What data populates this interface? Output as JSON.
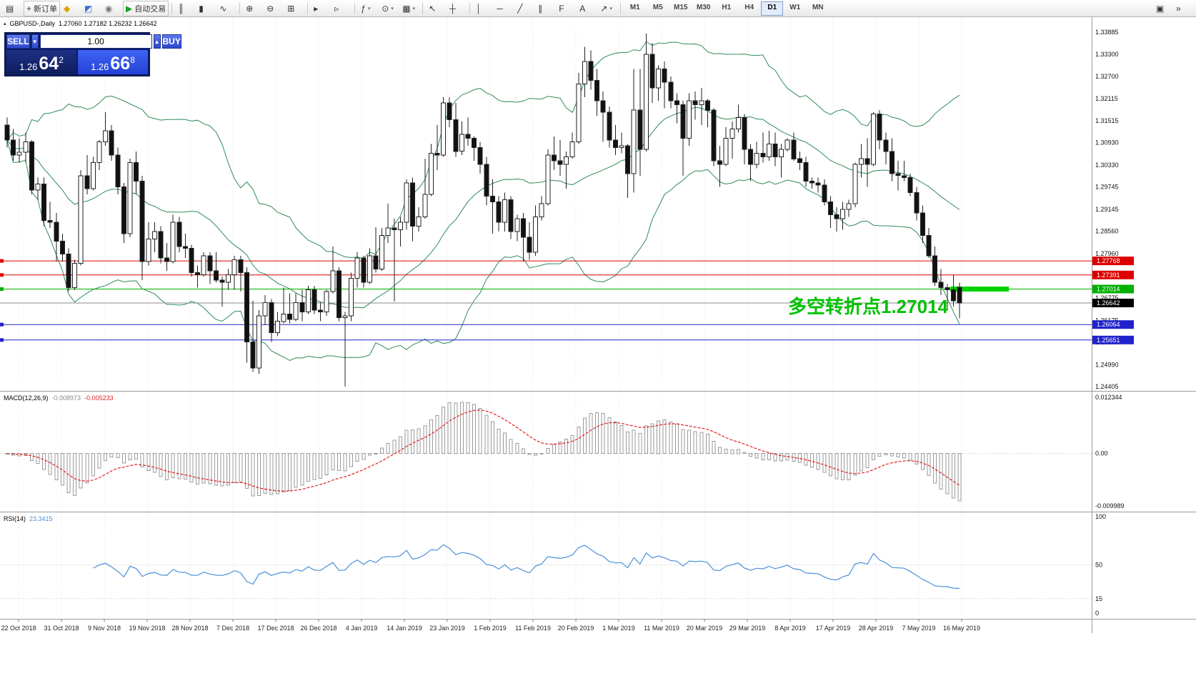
{
  "toolbar": {
    "buttons": [
      {
        "name": "new-chart",
        "glyph": "▤"
      },
      {
        "name": "new-order",
        "glyph": "+",
        "label": "新订单"
      },
      {
        "name": "strategy-tester",
        "glyph": "◆",
        "color": "#d8a400"
      },
      {
        "name": "market-watch",
        "glyph": "◩",
        "color": "#3a6fd8"
      },
      {
        "name": "navigator",
        "glyph": "◉",
        "color": "#777777"
      },
      {
        "name": "autotrading",
        "glyph": "▶",
        "label": "自动交易",
        "color": "#18a018"
      },
      {
        "sep": true
      },
      {
        "name": "chart-bars",
        "glyph": "║"
      },
      {
        "name": "chart-candles",
        "glyph": "▮"
      },
      {
        "name": "chart-line",
        "glyph": "∿"
      },
      {
        "sep": true
      },
      {
        "name": "zoom-in",
        "glyph": "⊕"
      },
      {
        "name": "zoom-out",
        "glyph": "⊖"
      },
      {
        "name": "tile-windows",
        "glyph": "⊞"
      },
      {
        "sep": true
      },
      {
        "name": "auto-scroll",
        "glyph": "▸"
      },
      {
        "name": "chart-shift",
        "glyph": "▹"
      },
      {
        "sep": true
      },
      {
        "name": "indicators",
        "glyph": "ƒ",
        "dropdown": true
      },
      {
        "name": "periods",
        "glyph": "⊙",
        "dropdown": true
      },
      {
        "name": "templates",
        "glyph": "▦",
        "dropdown": true
      },
      {
        "sep": true
      },
      {
        "name": "cursor",
        "glyph": "↖"
      },
      {
        "name": "crosshair",
        "glyph": "┼"
      },
      {
        "sep": true
      },
      {
        "name": "vertical-line",
        "glyph": "│"
      },
      {
        "name": "horizontal-line",
        "glyph": "─"
      },
      {
        "name": "trendline",
        "glyph": "╱"
      },
      {
        "name": "equidistant-channel",
        "glyph": "∥"
      },
      {
        "name": "fibonacci",
        "glyph": "F"
      },
      {
        "name": "text-label",
        "glyph": "A"
      },
      {
        "name": "arrow-tools",
        "glyph": "↗",
        "dropdown": true
      },
      {
        "sep": true
      }
    ],
    "timeframes": [
      {
        "label": "M1"
      },
      {
        "label": "M5"
      },
      {
        "label": "M15"
      },
      {
        "label": "M30"
      },
      {
        "label": "H1"
      },
      {
        "label": "H4"
      },
      {
        "label": "D1",
        "active": true
      },
      {
        "label": "W1"
      },
      {
        "label": "MN"
      }
    ],
    "right_buttons": [
      {
        "name": "chart-window",
        "glyph": "▣"
      },
      {
        "name": "toolbar-options",
        "glyph": "»"
      }
    ]
  },
  "header": {
    "collapse_icon": "▴",
    "symbol_period": "GBPUSD-,Daily",
    "ohlc_text": "1.27060 1.27182 1.26232 1.26642"
  },
  "one_click": {
    "sell_label": "SELL",
    "buy_label": "BUY",
    "volume": "1.00",
    "volume_down": "▼",
    "volume_up": "▲",
    "bid_prefix": "1.26",
    "bid_main": "64",
    "bid_sup": "2",
    "ask_prefix": "1.26",
    "ask_main": "66",
    "ask_sup": "8"
  },
  "chart_data": {
    "type": "candlestick",
    "symbol": "GBPUSD-",
    "timeframe": "Daily",
    "ohlc_current": {
      "open": "1.27060",
      "high": "1.27182",
      "low": "1.26232",
      "close": "1.26642"
    },
    "ylim": [
      1.2429,
      1.3429
    ],
    "price_ticks": [
      "1.33885",
      "1.33300",
      "1.32700",
      "1.32115",
      "1.31515",
      "1.30930",
      "1.30330",
      "1.29745",
      "1.29145",
      "1.28560",
      "1.27960",
      "1.26775",
      "1.26175",
      "1.25590",
      "1.24990",
      "1.24405"
    ],
    "levels": [
      {
        "price": 1.27768,
        "label": "1.27768",
        "color": "#dd0000"
      },
      {
        "price": 1.27391,
        "label": "1.27391",
        "color": "#dd0000"
      },
      {
        "price": 1.27014,
        "label": "1.27014",
        "color": "#00b000",
        "highlight": true
      },
      {
        "price": 1.26064,
        "label": "1.26064",
        "color": "#2222cc"
      },
      {
        "price": 1.25651,
        "label": "1.25651",
        "color": "#2222cc"
      }
    ],
    "current_price": {
      "price": 1.26642,
      "label": "1.26642",
      "color": "#000000"
    },
    "annotation": {
      "text": "多空转折点1.27014",
      "color": "#00c000"
    },
    "highlight_segment": {
      "price": 1.27014,
      "color": "#00d400"
    },
    "date_labels": [
      "22 Oct 2018",
      "31 Oct 2018",
      "9 Nov 2018",
      "19 Nov 2018",
      "28 Nov 2018",
      "7 Dec 2018",
      "17 Dec 2018",
      "26 Dec 2018",
      "4 Jan 2019",
      "14 Jan 2019",
      "23 Jan 2019",
      "1 Feb 2019",
      "11 Feb 2019",
      "20 Feb 2019",
      "1 Mar 2019",
      "11 Mar 2019",
      "20 Mar 2019",
      "29 Mar 2019",
      "8 Apr 2019",
      "17 Apr 2019",
      "28 Apr 2019",
      "7 May 2019",
      "16 May 2019"
    ],
    "indicators": {
      "bollinger": {
        "period": 20,
        "deviation": 2,
        "color": "#2e8b57"
      },
      "macd": {
        "name": "MACD(12,26,9)",
        "value_main": "-0.008973",
        "value_signal": "-0.005233",
        "fast": 12,
        "slow": 26,
        "signal": 9,
        "axis": [
          "0.012344",
          "0.00",
          "-0.009989"
        ],
        "histogram_color": "#9a9a9a",
        "signal_color": "#e02020"
      },
      "rsi": {
        "name": "RSI(14)",
        "value": "23.3415",
        "period": 14,
        "axis": [
          100,
          50,
          15,
          0
        ],
        "level_lines": [
          50,
          15
        ],
        "color": "#4a90d9"
      }
    },
    "candles": [
      [
        1.314,
        1.316,
        1.308,
        1.31
      ],
      [
        1.31,
        1.313,
        1.3045,
        1.306
      ],
      [
        1.306,
        1.3105,
        1.304,
        1.3068
      ],
      [
        1.3068,
        1.312,
        1.304,
        1.3095
      ],
      [
        1.3095,
        1.31,
        1.2955,
        1.2966
      ],
      [
        1.2966,
        1.3,
        1.294,
        1.2983
      ],
      [
        1.2983,
        1.3,
        1.287,
        1.2885
      ],
      [
        1.2885,
        1.2935,
        1.2865,
        1.288
      ],
      [
        1.288,
        1.2905,
        1.2775,
        1.283
      ],
      [
        1.283,
        1.285,
        1.2775,
        1.2795
      ],
      [
        1.2795,
        1.281,
        1.2696,
        1.2705
      ],
      [
        1.2705,
        1.278,
        1.27,
        1.277
      ],
      [
        1.277,
        1.302,
        1.2765,
        1.3005
      ],
      [
        1.3005,
        1.306,
        1.2955,
        1.297
      ],
      [
        1.297,
        1.3055,
        1.2965,
        1.304
      ],
      [
        1.304,
        1.31,
        1.302,
        1.3095
      ],
      [
        1.3095,
        1.3175,
        1.3085,
        1.3125
      ],
      [
        1.3125,
        1.314,
        1.3045,
        1.306
      ],
      [
        1.306,
        1.308,
        1.2955,
        1.2975
      ],
      [
        1.2975,
        1.2985,
        1.2825,
        1.285
      ],
      [
        1.285,
        1.305,
        1.284,
        1.304
      ],
      [
        1.304,
        1.307,
        1.2955,
        1.299
      ],
      [
        1.299,
        1.3005,
        1.2725,
        1.2775
      ],
      [
        1.2775,
        1.288,
        1.2765,
        1.2835
      ],
      [
        1.2835,
        1.288,
        1.28,
        1.2855
      ],
      [
        1.2855,
        1.287,
        1.277,
        1.2785
      ],
      [
        1.2785,
        1.2825,
        1.275,
        1.2775
      ],
      [
        1.2775,
        1.29,
        1.277,
        1.288
      ],
      [
        1.288,
        1.2895,
        1.28,
        1.2815
      ],
      [
        1.2815,
        1.285,
        1.2785,
        1.281
      ],
      [
        1.281,
        1.282,
        1.2735,
        1.2745
      ],
      [
        1.2745,
        1.2765,
        1.2705,
        1.274
      ],
      [
        1.274,
        1.28,
        1.2735,
        1.279
      ],
      [
        1.279,
        1.28,
        1.2715,
        1.275
      ],
      [
        1.275,
        1.28,
        1.272,
        1.2725
      ],
      [
        1.2725,
        1.2735,
        1.2655,
        1.272
      ],
      [
        1.272,
        1.2755,
        1.27,
        1.274
      ],
      [
        1.274,
        1.279,
        1.27,
        1.278
      ],
      [
        1.278,
        1.279,
        1.2695,
        1.2745
      ],
      [
        1.2745,
        1.276,
        1.2505,
        1.256
      ],
      [
        1.256,
        1.267,
        1.248,
        1.249
      ],
      [
        1.249,
        1.2645,
        1.2475,
        1.263
      ],
      [
        1.263,
        1.2685,
        1.2605,
        1.2665
      ],
      [
        1.2665,
        1.2675,
        1.256,
        1.2585
      ],
      [
        1.2585,
        1.264,
        1.2575,
        1.2615
      ],
      [
        1.2615,
        1.2705,
        1.261,
        1.2635
      ],
      [
        1.2635,
        1.269,
        1.261,
        1.262
      ],
      [
        1.262,
        1.269,
        1.2615,
        1.2665
      ],
      [
        1.2665,
        1.27,
        1.2615,
        1.264
      ],
      [
        1.264,
        1.271,
        1.2635,
        1.27
      ],
      [
        1.27,
        1.271,
        1.2635,
        1.2645
      ],
      [
        1.2645,
        1.2665,
        1.2615,
        1.264
      ],
      [
        1.264,
        1.27,
        1.263,
        1.2695
      ],
      [
        1.2695,
        1.2815,
        1.269,
        1.275
      ],
      [
        1.275,
        1.276,
        1.2615,
        1.2625
      ],
      [
        1.2625,
        1.264,
        1.244,
        1.263
      ],
      [
        1.263,
        1.2745,
        1.2615,
        1.273
      ],
      [
        1.273,
        1.28,
        1.2705,
        1.2785
      ],
      [
        1.2785,
        1.279,
        1.2705,
        1.272
      ],
      [
        1.272,
        1.281,
        1.2715,
        1.279
      ],
      [
        1.279,
        1.2867,
        1.2745,
        1.2755
      ],
      [
        1.2755,
        1.2865,
        1.275,
        1.2845
      ],
      [
        1.2845,
        1.293,
        1.2825,
        1.2865
      ],
      [
        1.2865,
        1.289,
        1.2668,
        1.286
      ],
      [
        1.286,
        1.2895,
        1.2815,
        1.288
      ],
      [
        1.288,
        1.2995,
        1.286,
        1.2985
      ],
      [
        1.2985,
        1.3,
        1.283,
        1.287
      ],
      [
        1.287,
        1.292,
        1.2855,
        1.2895
      ],
      [
        1.2895,
        1.305,
        1.289,
        1.2955
      ],
      [
        1.2955,
        1.309,
        1.295,
        1.3065
      ],
      [
        1.3065,
        1.314,
        1.302,
        1.306
      ],
      [
        1.306,
        1.3215,
        1.3055,
        1.32
      ],
      [
        1.32,
        1.3215,
        1.3135,
        1.3155
      ],
      [
        1.3155,
        1.32,
        1.3055,
        1.307
      ],
      [
        1.307,
        1.315,
        1.306,
        1.3115
      ],
      [
        1.3115,
        1.316,
        1.3085,
        1.3105
      ],
      [
        1.3105,
        1.311,
        1.3045,
        1.308
      ],
      [
        1.308,
        1.3095,
        1.301,
        1.3035
      ],
      [
        1.3035,
        1.3055,
        1.2925,
        1.295
      ],
      [
        1.295,
        1.2995,
        1.285,
        1.2935
      ],
      [
        1.2935,
        1.295,
        1.2855,
        1.288
      ],
      [
        1.288,
        1.296,
        1.2855,
        1.294
      ],
      [
        1.294,
        1.295,
        1.2835,
        1.2855
      ],
      [
        1.2855,
        1.29,
        1.283,
        1.289
      ],
      [
        1.289,
        1.2905,
        1.2775,
        1.284
      ],
      [
        1.284,
        1.288,
        1.278,
        1.28
      ],
      [
        1.28,
        1.2925,
        1.279,
        1.2895
      ],
      [
        1.2895,
        1.295,
        1.2885,
        1.293
      ],
      [
        1.293,
        1.3075,
        1.2925,
        1.306
      ],
      [
        1.306,
        1.311,
        1.302,
        1.3045
      ],
      [
        1.3045,
        1.31,
        1.3005,
        1.3035
      ],
      [
        1.3035,
        1.307,
        1.297,
        1.3055
      ],
      [
        1.3055,
        1.312,
        1.305,
        1.3095
      ],
      [
        1.3095,
        1.328,
        1.309,
        1.325
      ],
      [
        1.325,
        1.335,
        1.3215,
        1.331
      ],
      [
        1.331,
        1.334,
        1.3235,
        1.326
      ],
      [
        1.326,
        1.329,
        1.3165,
        1.3205
      ],
      [
        1.3205,
        1.323,
        1.3095,
        1.3175
      ],
      [
        1.3175,
        1.319,
        1.308,
        1.31
      ],
      [
        1.31,
        1.314,
        1.306,
        1.308
      ],
      [
        1.308,
        1.312,
        1.3065,
        1.3085
      ],
      [
        1.3085,
        1.309,
        1.2945,
        1.301
      ],
      [
        1.301,
        1.329,
        1.296,
        1.318
      ],
      [
        1.318,
        1.329,
        1.3005,
        1.3075
      ],
      [
        1.3075,
        1.3385,
        1.307,
        1.333
      ],
      [
        1.333,
        1.336,
        1.32,
        1.324
      ],
      [
        1.324,
        1.33,
        1.3205,
        1.329
      ],
      [
        1.329,
        1.331,
        1.3185,
        1.3255
      ],
      [
        1.3255,
        1.327,
        1.3185,
        1.3205
      ],
      [
        1.3205,
        1.3225,
        1.3145,
        1.3195
      ],
      [
        1.3195,
        1.3205,
        1.3005,
        1.3105
      ],
      [
        1.3105,
        1.3225,
        1.3085,
        1.3205
      ],
      [
        1.3205,
        1.323,
        1.3155,
        1.3195
      ],
      [
        1.3195,
        1.324,
        1.314,
        1.3205
      ],
      [
        1.3205,
        1.321,
        1.3135,
        1.318
      ],
      [
        1.318,
        1.3185,
        1.303,
        1.3045
      ],
      [
        1.3045,
        1.3085,
        1.2975,
        1.3035
      ],
      [
        1.3035,
        1.3135,
        1.303,
        1.3105
      ],
      [
        1.3105,
        1.315,
        1.305,
        1.313
      ],
      [
        1.313,
        1.3195,
        1.312,
        1.316
      ],
      [
        1.316,
        1.317,
        1.3035,
        1.3075
      ],
      [
        1.3075,
        1.309,
        1.299,
        1.3035
      ],
      [
        1.3035,
        1.3095,
        1.3025,
        1.3065
      ],
      [
        1.3065,
        1.312,
        1.304,
        1.3055
      ],
      [
        1.3055,
        1.3125,
        1.3045,
        1.309
      ],
      [
        1.309,
        1.312,
        1.303,
        1.3055
      ],
      [
        1.3055,
        1.309,
        1.3,
        1.3075
      ],
      [
        1.3075,
        1.3105,
        1.307,
        1.31
      ],
      [
        1.31,
        1.312,
        1.3045,
        1.305
      ],
      [
        1.305,
        1.307,
        1.302,
        1.304
      ],
      [
        1.304,
        1.3055,
        1.2975,
        1.299
      ],
      [
        1.299,
        1.3,
        1.297,
        1.2985
      ],
      [
        1.2985,
        1.3,
        1.296,
        1.298
      ],
      [
        1.298,
        1.2995,
        1.2925,
        1.2935
      ],
      [
        1.2935,
        1.295,
        1.2865,
        1.29
      ],
      [
        1.29,
        1.292,
        1.2855,
        1.289
      ],
      [
        1.289,
        1.2935,
        1.286,
        1.2915
      ],
      [
        1.2915,
        1.294,
        1.2895,
        1.293
      ],
      [
        1.293,
        1.304,
        1.292,
        1.3035
      ],
      [
        1.3035,
        1.309,
        1.3,
        1.305
      ],
      [
        1.305,
        1.3105,
        1.2975,
        1.3035
      ],
      [
        1.3035,
        1.3175,
        1.303,
        1.317
      ],
      [
        1.317,
        1.318,
        1.3075,
        1.31
      ],
      [
        1.31,
        1.312,
        1.3035,
        1.307
      ],
      [
        1.307,
        1.3105,
        1.299,
        1.301
      ],
      [
        1.301,
        1.3045,
        1.2965,
        1.3005
      ],
      [
        1.3005,
        1.3045,
        1.299,
        1.3
      ],
      [
        1.3,
        1.301,
        1.295,
        1.296
      ],
      [
        1.296,
        1.2975,
        1.2885,
        1.2905
      ],
      [
        1.2905,
        1.2925,
        1.2825,
        1.2845
      ],
      [
        1.2845,
        1.2865,
        1.2785,
        1.279
      ],
      [
        1.279,
        1.2815,
        1.271,
        1.272
      ],
      [
        1.272,
        1.2755,
        1.2685,
        1.2705
      ],
      [
        1.2705,
        1.2715,
        1.265,
        1.27
      ],
      [
        1.27,
        1.274,
        1.2655,
        1.267
      ],
      [
        1.2706,
        1.27182,
        1.26232,
        1.26642
      ]
    ]
  }
}
